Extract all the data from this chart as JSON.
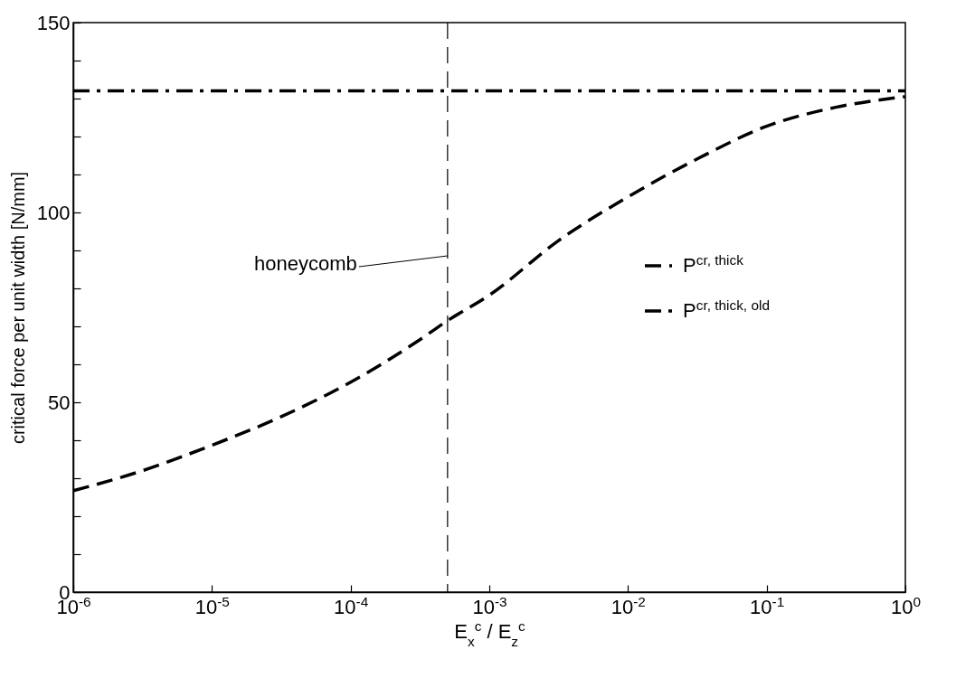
{
  "chart_data": {
    "type": "line",
    "xlabel": "E$_{x}$$^{c}$ / E$_{z}$$^{c}$",
    "ylabel": "critical force per unit width [N/mm]",
    "log": "x",
    "xlim": [
      1e-06,
      1
    ],
    "xticks": [
      {
        "value": 1e-06,
        "label": "10$^{-6}$"
      },
      {
        "value": 1e-05,
        "label": "10$^{-5}$"
      },
      {
        "value": 0.0001,
        "label": "10$^{-4}$"
      },
      {
        "value": 0.001,
        "label": "10$^{-3}$"
      },
      {
        "value": 0.01,
        "label": "10$^{-2}$"
      },
      {
        "value": 0.1,
        "label": "10$^{-1}$"
      },
      {
        "value": 1,
        "label": "10$^{0}$"
      }
    ],
    "ylim": [
      0,
      150
    ],
    "yticks": [
      0,
      {
        "value": 10,
        "label": null
      },
      {
        "value": 20,
        "label": null
      },
      {
        "value": 30,
        "label": null
      },
      {
        "value": 40,
        "label": null
      },
      50,
      {
        "value": 60,
        "label": null
      },
      {
        "value": 70,
        "label": null
      },
      {
        "value": 80,
        "label": null
      },
      {
        "value": 90,
        "label": null
      },
      100,
      {
        "value": 110,
        "label": null
      },
      {
        "value": 120,
        "label": null
      },
      {
        "value": 130,
        "label": null
      },
      {
        "value": 140,
        "label": null
      },
      150
    ],
    "grid": false,
    "legend": "right",
    "marker": "none",
    "series": [
      {
        "name": "P$^{cr, thick}$",
        "color": "#000000",
        "line_style": "dashed",
        "x": [
          1e-06,
          3.16e-06,
          1e-05,
          3.16e-05,
          0.0001,
          0.000316,
          0.0005,
          0.001,
          0.00316,
          0.01,
          0.0316,
          0.1,
          0.316,
          1
        ],
        "values": [
          26.7,
          32.0,
          38.7,
          46.2,
          55.3,
          66.5,
          71.5,
          78.2,
          92.6,
          104.1,
          114.1,
          122.7,
          127.7,
          130.5
        ]
      },
      {
        "name": "P$^{cr, thick, old}$",
        "color": "#000000",
        "line_style": "dashdot",
        "x": [
          1e-06,
          1
        ],
        "values": [
          132,
          132
        ]
      }
    ],
    "ref_lines": [
      {
        "axis": "x",
        "value": 0.0005,
        "label": "honeycomb",
        "line_style": "dashed",
        "color": "#000000"
      }
    ]
  }
}
